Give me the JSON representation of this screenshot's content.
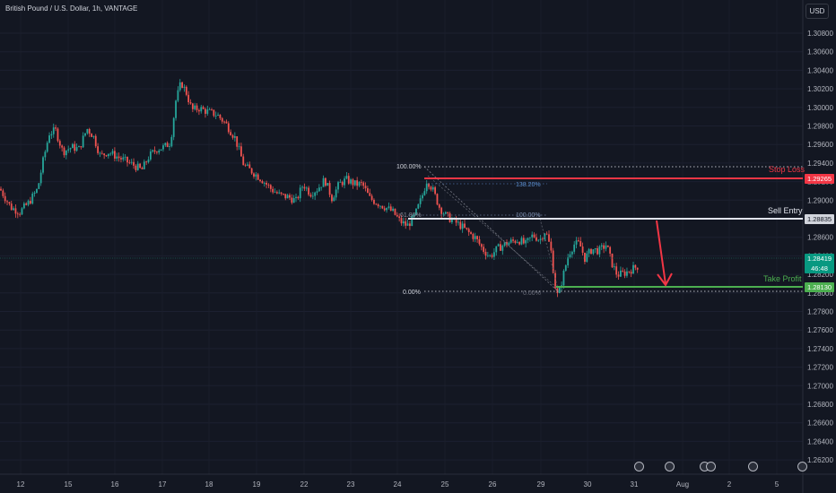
{
  "header": {
    "title": "British Pound / U.S. Dollar, 1h, VANTAGE",
    "currency": "USD"
  },
  "annotations": {
    "stop_loss": "Stop Loss",
    "sell_entry": "Sell Entry",
    "take_profit": "Take Profit"
  },
  "price_tags": {
    "stop_loss": "1.29265",
    "sell_entry": "1.28835",
    "current_price": "1.28419",
    "countdown": "46:48",
    "take_profit": "1.28130"
  },
  "fib_top": {
    "l100": "100.00%",
    "l0": "0.00%"
  },
  "fib_ext": {
    "l138": "138.20%",
    "l100": "100.00%",
    "l0": "0.00%",
    "l61": "61.80%"
  },
  "colors": {
    "background": "#131722",
    "up": "#26a69a",
    "down": "#ef5350",
    "stop_loss": "#f23645",
    "sell_entry": "#d1d4dc",
    "take_profit": "#4caf50",
    "arrow": "#f23645"
  },
  "events": [
    "flash-icon",
    "us-flag-icon",
    "us-flag-icon",
    "us-flag-icon",
    "us-flag-icon",
    "us-flag-icon"
  ],
  "chart_data": {
    "type": "candlestick",
    "title": "British Pound / U.S. Dollar, 1h, VANTAGE",
    "y_ticks": [
      "1.30800",
      "1.30600",
      "1.30400",
      "1.30200",
      "1.30000",
      "1.29800",
      "1.29600",
      "1.29400",
      "1.29200",
      "1.29000",
      "1.28800",
      "1.28600",
      "1.28400",
      "1.28200",
      "1.28000",
      "1.27800",
      "1.27600",
      "1.27400",
      "1.27200",
      "1.27000",
      "1.26800",
      "1.26600",
      "1.26400",
      "1.26200"
    ],
    "x_ticks": [
      "12",
      "15",
      "16",
      "17",
      "18",
      "19",
      "22",
      "23",
      "24",
      "25",
      "26",
      "29",
      "30",
      "31",
      "Aug",
      "2",
      "5"
    ],
    "ylim": [
      1.2618,
      1.3093
    ],
    "levels": {
      "stop_loss": 1.29265,
      "sell_entry": 1.28835,
      "take_profit": 1.2813,
      "current": 1.28419
    },
    "path": [
      [
        0,
        1.2925
      ],
      [
        12,
        1.2905
      ],
      [
        22,
        1.29
      ],
      [
        32,
        1.291
      ],
      [
        42,
        1.2925
      ],
      [
        48,
        1.2955
      ],
      [
        55,
        1.2985
      ],
      [
        62,
        1.2988
      ],
      [
        70,
        1.2965
      ],
      [
        80,
        1.297
      ],
      [
        88,
        1.2968
      ],
      [
        97,
        1.299
      ],
      [
        104,
        1.2982
      ],
      [
        112,
        1.296
      ],
      [
        120,
        1.2965
      ],
      [
        130,
        1.296
      ],
      [
        140,
        1.2955
      ],
      [
        150,
        1.295
      ],
      [
        158,
        1.2945
      ],
      [
        166,
        1.296
      ],
      [
        175,
        1.2968
      ],
      [
        183,
        1.297
      ],
      [
        190,
        1.2975
      ],
      [
        196,
        1.302
      ],
      [
        202,
        1.304
      ],
      [
        208,
        1.3028
      ],
      [
        214,
        1.301
      ],
      [
        222,
        1.3012
      ],
      [
        232,
        1.3008
      ],
      [
        242,
        1.3005
      ],
      [
        252,
        1.2995
      ],
      [
        262,
        1.298
      ],
      [
        272,
        1.295
      ],
      [
        282,
        1.2943
      ],
      [
        292,
        1.2935
      ],
      [
        302,
        1.2925
      ],
      [
        312,
        1.2918
      ],
      [
        322,
        1.2916
      ],
      [
        330,
        1.2912
      ],
      [
        338,
        1.293
      ],
      [
        346,
        1.292
      ],
      [
        354,
        1.2925
      ],
      [
        362,
        1.2935
      ],
      [
        370,
        1.2915
      ],
      [
        378,
        1.293
      ],
      [
        386,
        1.2935
      ],
      [
        396,
        1.293
      ],
      [
        404,
        1.293
      ],
      [
        412,
        1.2915
      ],
      [
        420,
        1.291
      ],
      [
        430,
        1.2905
      ],
      [
        438,
        1.29
      ],
      [
        446,
        1.289
      ],
      [
        454,
        1.2885
      ],
      [
        462,
        1.2895
      ],
      [
        470,
        1.2915
      ],
      [
        476,
        1.2935
      ],
      [
        482,
        1.2925
      ],
      [
        490,
        1.2905
      ],
      [
        498,
        1.2895
      ],
      [
        506,
        1.289
      ],
      [
        514,
        1.2885
      ],
      [
        522,
        1.2878
      ],
      [
        530,
        1.2872
      ],
      [
        538,
        1.286
      ],
      [
        546,
        1.2852
      ],
      [
        554,
        1.286
      ],
      [
        562,
        1.2865
      ],
      [
        570,
        1.2868
      ],
      [
        578,
        1.287
      ],
      [
        586,
        1.2865
      ],
      [
        594,
        1.2875
      ],
      [
        602,
        1.287
      ],
      [
        608,
        1.288
      ],
      [
        614,
        1.286
      ],
      [
        619,
        1.282
      ],
      [
        622,
        1.2808
      ],
      [
        628,
        1.2832
      ],
      [
        634,
        1.2855
      ],
      [
        640,
        1.2865
      ],
      [
        646,
        1.2866
      ],
      [
        652,
        1.285
      ],
      [
        660,
        1.286
      ],
      [
        668,
        1.2858
      ],
      [
        676,
        1.2865
      ],
      [
        682,
        1.2845
      ],
      [
        688,
        1.2832
      ],
      [
        696,
        1.2834
      ],
      [
        704,
        1.2838
      ],
      [
        712,
        1.2842
      ]
    ]
  }
}
